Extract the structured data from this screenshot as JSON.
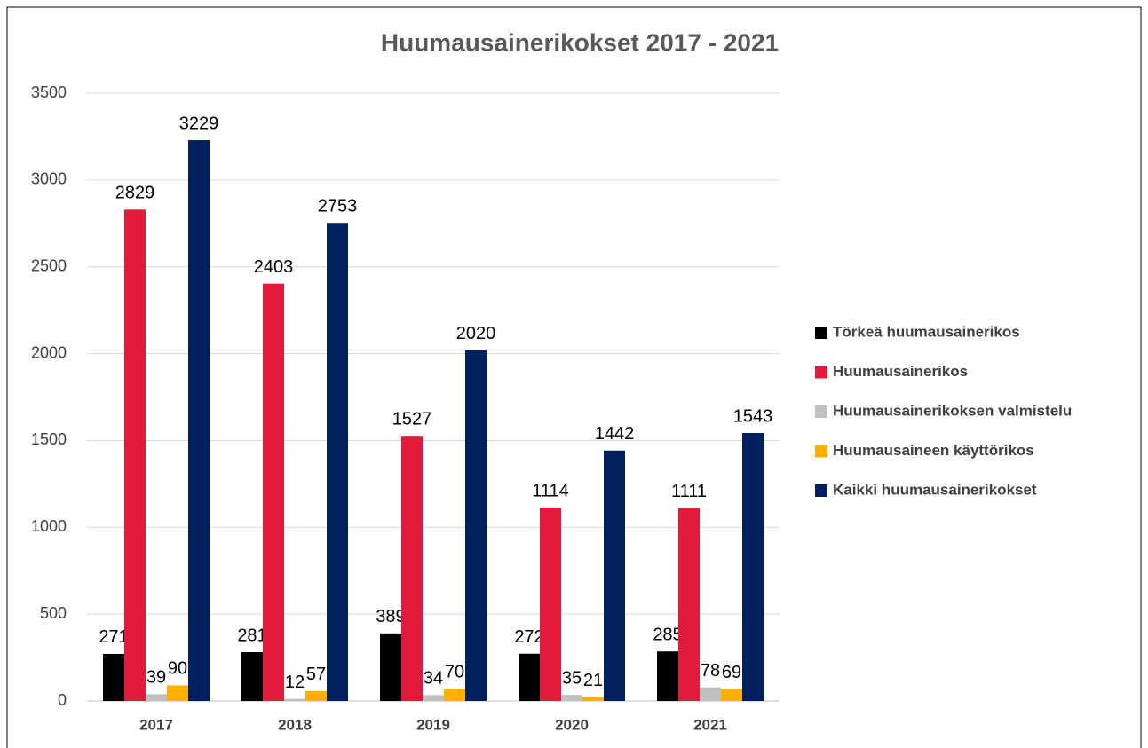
{
  "chart_data": {
    "type": "bar",
    "title": "Huumausainerikokset 2017 - 2021",
    "categories": [
      "2017",
      "2018",
      "2019",
      "2020",
      "2021"
    ],
    "series": [
      {
        "name": "Törkeä huumausainerikos",
        "color": "#000000",
        "values": [
          271,
          281,
          389,
          272,
          285
        ]
      },
      {
        "name": "Huumausainerikos",
        "color": "#e31b3a",
        "values": [
          2829,
          2403,
          1527,
          1114,
          1111
        ]
      },
      {
        "name": "Huumausainerikoksen valmistelu",
        "color": "#bfbfbf",
        "values": [
          39,
          12,
          34,
          35,
          78
        ]
      },
      {
        "name": "Huumausaineen käyttörikos",
        "color": "#ffb000",
        "values": [
          90,
          57,
          70,
          21,
          69
        ]
      },
      {
        "name": "Kaikki huumausainerikokset",
        "color": "#002060",
        "values": [
          3229,
          2753,
          2020,
          1442,
          1543
        ]
      }
    ],
    "ylim": [
      0,
      3500
    ],
    "yticks": [
      0,
      500,
      1000,
      1500,
      2000,
      2500,
      3000,
      3500
    ],
    "grid": true,
    "legend": "right"
  }
}
